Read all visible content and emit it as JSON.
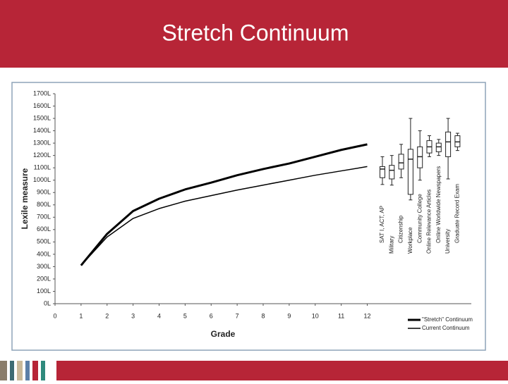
{
  "slide_title": "Stretch Continuum",
  "chart_data": {
    "type": "line",
    "y_label": "Lexile measure",
    "x_label": "Grade",
    "xlim": [
      0,
      16
    ],
    "xticks": [
      0,
      1,
      2,
      3,
      4,
      5,
      6,
      7,
      8,
      9,
      10,
      11,
      12
    ],
    "ylim": [
      0,
      1700
    ],
    "yticks": [
      {
        "value": 0,
        "label": "0L"
      },
      {
        "value": 100,
        "label": "100L"
      },
      {
        "value": 200,
        "label": "200L"
      },
      {
        "value": 300,
        "label": "300L"
      },
      {
        "value": 400,
        "label": "400L"
      },
      {
        "value": 500,
        "label": "500L"
      },
      {
        "value": 600,
        "label": "600L"
      },
      {
        "value": 700,
        "label": "700L"
      },
      {
        "value": 800,
        "label": "800L"
      },
      {
        "value": 900,
        "label": "900L"
      },
      {
        "value": 1000,
        "label": "1000L"
      },
      {
        "value": 1100,
        "label": "1100L"
      },
      {
        "value": 1200,
        "label": "1200L"
      },
      {
        "value": 1300,
        "label": "1300L"
      },
      {
        "value": 1400,
        "label": "1400L"
      },
      {
        "value": 1500,
        "label": "1500L"
      },
      {
        "value": 1600,
        "label": "1600L"
      },
      {
        "value": 1700,
        "label": "1700L"
      }
    ],
    "x": [
      1,
      2,
      3,
      4,
      5,
      6,
      7,
      8,
      9,
      10,
      11,
      12
    ],
    "series": [
      {
        "name": "\"Stretch\" Continuum",
        "color": "#000000",
        "width": 3,
        "values": [
          310,
          565,
          750,
          850,
          925,
          980,
          1040,
          1090,
          1135,
          1190,
          1245,
          1290
        ]
      },
      {
        "name": "Current Continuum",
        "color": "#000000",
        "width": 1.5,
        "values": [
          310,
          540,
          690,
          770,
          830,
          875,
          920,
          960,
          1000,
          1040,
          1075,
          1110
        ]
      }
    ],
    "boxes": [
      {
        "name": "SAT I, ACT, AP",
        "min": 965,
        "q1": 1020,
        "median": 1090,
        "q3": 1110,
        "max": 1190
      },
      {
        "name": "Military",
        "min": 960,
        "q1": 1010,
        "median": 1080,
        "q3": 1120,
        "max": 1200
      },
      {
        "name": "Citizenship",
        "min": 1020,
        "q1": 1090,
        "median": 1140,
        "q3": 1210,
        "max": 1290
      },
      {
        "name": "Workplace",
        "min": 840,
        "q1": 885,
        "median": 1170,
        "q3": 1250,
        "max": 1500
      },
      {
        "name": "Community College",
        "min": 1000,
        "q1": 1100,
        "median": 1190,
        "q3": 1270,
        "max": 1400
      },
      {
        "name": "Online Relevance Articles",
        "min": 1190,
        "q1": 1220,
        "median": 1270,
        "q3": 1320,
        "max": 1360
      },
      {
        "name": "Online Worldwide Newspapers",
        "min": 1200,
        "q1": 1230,
        "median": 1270,
        "q3": 1300,
        "max": 1330
      },
      {
        "name": "University",
        "min": 1010,
        "q1": 1190,
        "median": 1310,
        "q3": 1390,
        "max": 1500
      },
      {
        "name": "Graduate Record Exam",
        "min": 1240,
        "q1": 1270,
        "median": 1310,
        "q3": 1360,
        "max": 1380
      }
    ]
  }
}
